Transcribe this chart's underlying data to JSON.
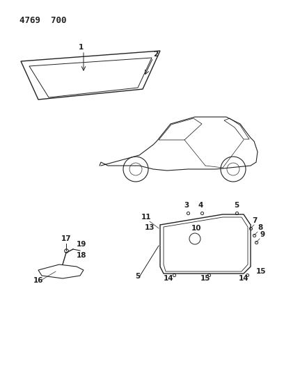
{
  "title": "4769  700",
  "bg_color": "#ffffff",
  "line_color": "#222222",
  "title_fontsize": 9,
  "label_fontsize": 7.5,
  "fig_width": 4.08,
  "fig_height": 5.33
}
